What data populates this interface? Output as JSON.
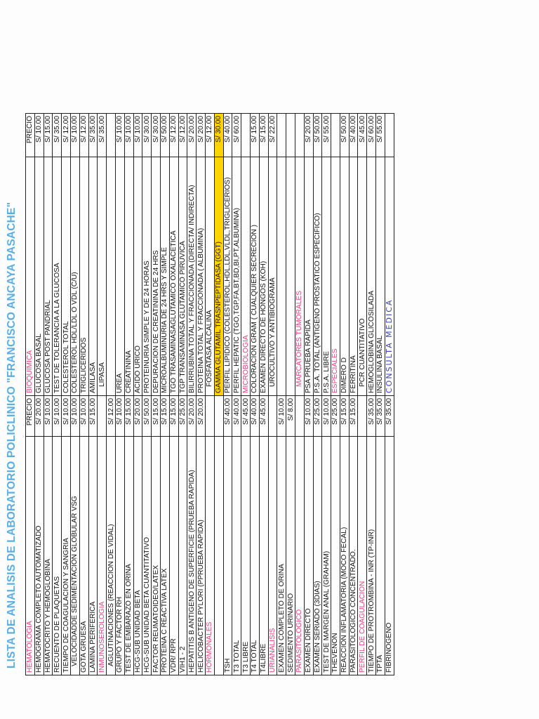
{
  "document": {
    "title": "LISTA DE ANALISIS DE LABORATORIO POLICLINICO \"FRANCISCO ANCAYA PASACHE\"",
    "orientation": "rotated -90deg (landscape scan)",
    "colors": {
      "title": "#5aaee6",
      "section": "#e8417f",
      "highlight": "#ffd400",
      "handwriting": "#3b3fc4"
    }
  },
  "table": {
    "header": {
      "left_price": "PRECIO",
      "right_price": "PRECIO"
    },
    "rows": [
      {
        "ln": "HEMATOLOGIA",
        "ls": true,
        "lp": "PRECIO",
        "rn": "BIOQUIMICA",
        "rs": true,
        "rp": "PRECIO"
      },
      {
        "ln": "HEMOGRAMA COMPLETO AUTOMATIZADO",
        "lp": "S/ 20.00",
        "rn": "GLUCOSA BASAL",
        "rp": "S/ 10.00"
      },
      {
        "ln": "HEMATOCRITO Y HEMOGLOBINA",
        "lp": "S/ 10.00",
        "rn": "GLUCOSA POST PANDRIAL",
        "rp": "S/ 15.00"
      },
      {
        "ln": "RECUENTO DE PLAQUETAS",
        "lp": "S/ 10.00",
        "rn": "TEST DE TOLERANCIA A LA GLUCOSA",
        "rp": "S/ 35.00"
      },
      {
        "ln": "TIEMPO DE COAGULACION Y SANGRIA",
        "lp": "S/ 10.00",
        "rn": "COLESTEROL TOTAL",
        "rp": "S/ 12.00"
      },
      {
        "ln": "VELOCIDADDE SEDIMENTACION GLOBULAR VSG",
        "li": true,
        "lp": "S/ 10.00",
        "rn": "COLESTEROL HDL/LDL O VDL (C/U)",
        "rp": "S/ 10.00"
      },
      {
        "ln": "GOTA GRUESA",
        "lp": "S/ 10.00",
        "rn": "TRIGLICERIDOS",
        "rp": "S/ 12.00"
      },
      {
        "ln": "LAMINA PERIFERICA",
        "lp": "S/ 15.00",
        "rn": "AMILASA",
        "rp": "S/ 35.00"
      },
      {
        "ln": "INMUNOSEROLOGIA",
        "ls": true,
        "lp": "",
        "rn": "LIPASA",
        "ri": true,
        "rp": "S/ 35.00"
      },
      {
        "ln": "AGLUTINACIONES (REACCION DE VIDAL)",
        "li": true,
        "lp": "S/ 12.00",
        "rn": "",
        "rp": ""
      },
      {
        "ln": "GRUPO Y FACTOR RH",
        "lp": "S/ 10.00",
        "rn": "UREA",
        "rp": "S/ 10.00"
      },
      {
        "ln": "TEST DE EMBARAZO EN ORINA",
        "lp": "S/ 15.00",
        "rn": "CREATININA",
        "rp": "S/ 10.00"
      },
      {
        "ln": "HCG-SUB UNIDAD BETA",
        "lp": "S/ 20.00",
        "rn": "ACIDO URICO",
        "rp": "S/ 10.00"
      },
      {
        "ln": "HCG-SUB UNIDAD BETA CUANTITATIVO",
        "lp": "S/ 50.00",
        "rn": "PROTEINURIA SIMPLE Y DE 24 HORAS",
        "rp": "S/ 30.00"
      },
      {
        "ln": "FACTOR REUMATOIDEO/LATEX",
        "lp": "S/ 15.00",
        "rn": "DEPURACION DE CREATININA DE 24 HRS",
        "rp": "S/ 30.00"
      },
      {
        "ln": "PROTEINA C REACTIVA LATEX",
        "lp": "S/ 15.00",
        "rn": "MICROALBUMINURIA DE 24 HRS Y SIMPLE",
        "rp": "S/ 50.00"
      },
      {
        "ln": "VDR/ RPR",
        "lp": "S/ 15.00",
        "rn": "TGO TRASAMINASAGLUTAMICO OXALACETICA",
        "rp": "S/ 12.00"
      },
      {
        "ln": "VIH1 - 2",
        "lp": "S/ 25.00",
        "rn": "TGP TRANSAMINASA GLUTAMICO PIRUVICA",
        "rp": "S/ 12.00"
      },
      {
        "ln": "HEPATITIS B ANTIGENO DE SUPERFICIE (PRUEBA RAPIDA)",
        "lp": "S/ 20.00",
        "rn": "BILIRRUBINA TOTAL Y FRACCIONADA (DIRECTA/ INDIRECTA)",
        "rp": "S/ 20.00"
      },
      {
        "ln": "HELICOBACTER PYLORI (PPRUEBA RAPIDA)",
        "lp": "S/ 20.00",
        "rn": "PROTEINA TOTAL Y FRACCIONADA ( ALBUMINA)",
        "rp": "S/ 20.00"
      },
      {
        "ln": "HORMONALES",
        "ls": true,
        "lp": "",
        "rn": "FOSFATASA ALCALINA",
        "ri": true,
        "rp": "S/ 12.00"
      },
      {
        "ln": "",
        "lp": "",
        "rn": "GAMMA GLUTAMIL TRASNPEPTIDASA  (GGT)",
        "rh": true,
        "rp": "S/ 30.00"
      },
      {
        "ln": "TSH",
        "lp": "S/ 40.00",
        "rn": "PERFIL LIPIDICO (COLESTEROL,HDL,LDL,VLDL,TRIGLICERIOS)",
        "rp": "S/ 40.00"
      },
      {
        "ln": "T3 TOTAL",
        "lp": "S/ 40.00",
        "rn": "PERFIL HEPATIC (TGO,TGP,FA,BT,BD,BI,PT,ALBUMINA)",
        "rp": "S/ 60.00"
      },
      {
        "ln": "T3 LIBRE",
        "lp": "S/ 45.00",
        "rn": "MICROBIOLOGIA",
        "rs": true,
        "rp": ""
      },
      {
        "ln": "T4 TOTAL",
        "lp": "S/ 40.00",
        "rn": "COLORACION GRAM ( CUALQUIER SECRECION )",
        "rp": "S/ 15.00"
      },
      {
        "ln": "T4LIBRE",
        "lp": "S/ 45.00",
        "rn": "EXAMEN DIRECTO DE HONGOS (KOH)",
        "rp": "S/ 15.00"
      },
      {
        "ln": "URIANALISIS",
        "ls": true,
        "lp": "",
        "rn": "UROCULTIVO Y ANTIBIOGRAMA",
        "ri": true,
        "rp": "S/ 22.00"
      },
      {
        "ln": "EXAMEN COMPLETO DE ORINA",
        "lp": "S/ 10.00",
        "rn": "",
        "rp": ""
      },
      {
        "ln": "SEDIMENTO URINARIO",
        "lp": "S/ 8.00",
        "rn": "",
        "rp": ""
      },
      {
        "ln": "PARASITOLOGICO",
        "ls": true,
        "lp": "",
        "rn": "MARCATORES TUMORALES",
        "rs": true,
        "ri": true,
        "rp": ""
      },
      {
        "ln": "EXAMEN DIRECTO",
        "lp": "S/ 10.00",
        "rn": "PSA PRUEBA RAPIDA",
        "rp": "S/ 20.00"
      },
      {
        "ln": "EXAMEN SERIADO (3DIAS)",
        "lp": "S/ 25.00",
        "rn": "P.S.A. TOTAL (ANTIGENO PROSTATICO ESPECIFICO)",
        "rp": "S/ 50.00"
      },
      {
        "ln": "TEST DE MARGEN ANAL (GRAHAM)",
        "lp": "S/ 10.00",
        "rn": "P.S.A. LIBRE",
        "rp": "S/ 55.00"
      },
      {
        "ln": "THEVENON",
        "lp": "S/ 25.00",
        "rn": "ESPECIALES",
        "rs": true,
        "rp": ""
      },
      {
        "ln": "REACCION INFLAMATORIA (MOCO FECAL)",
        "lp": "S/ 15.00",
        "rn": "DIMERO D",
        "rp": "S/ 50.00"
      },
      {
        "ln": "PARASITOLOGICO CONCENTRADO.",
        "lp": "S/ 15.00",
        "rn": "FERRITINA",
        "rp": "S/ 40.00"
      },
      {
        "ln": "PERFIL DE COAGULACION",
        "ls": true,
        "lp": "",
        "rn": "PCR CUANTITATIVO",
        "ri": true,
        "rp": "S/ 45.00"
      },
      {
        "ln": "TIEMPO DE PROTROMBINA - INR  (TP-INR)",
        "lp": "S/ 35.00",
        "rn": "HEMOGLOBINA GLICOSILADA",
        "rp": "S/ 60.00"
      },
      {
        "ln": "TPTA",
        "lp": "S/ 35.00",
        "rn": "INSULINA BASAL",
        "rp": "S/ 55.00"
      },
      {
        "ln": "FIBRINOGENO",
        "lp": "S/ 35.00",
        "rn": "CONSULTA   MEDICA",
        "rw": true,
        "rp": ""
      }
    ]
  }
}
